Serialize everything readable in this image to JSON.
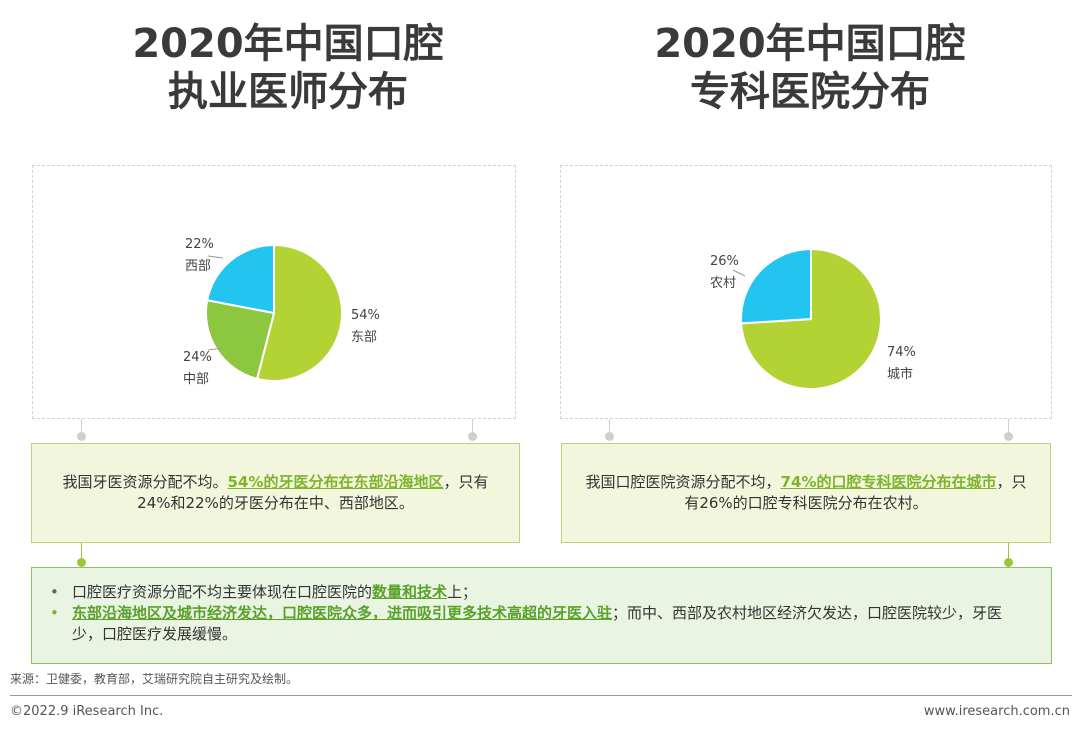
{
  "titles": {
    "left": {
      "line1": "2020年中国口腔",
      "line2": "执业医师分布"
    },
    "right": {
      "line1": "2020年中国口腔",
      "line2": "专科医院分布"
    }
  },
  "chart_data": [
    {
      "type": "pie",
      "title": "2020年中国口腔执业医师分布",
      "slices": [
        {
          "label": "东部",
          "value": 54,
          "value_text": "54%",
          "color": "#b3d335"
        },
        {
          "label": "中部",
          "value": 24,
          "value_text": "24%",
          "color": "#8dc63f"
        },
        {
          "label": "西部",
          "value": 22,
          "value_text": "22%",
          "color": "#22c4f0"
        }
      ]
    },
    {
      "type": "pie",
      "title": "2020年中国口腔专科医院分布",
      "slices": [
        {
          "label": "城市",
          "value": 74,
          "value_text": "74%",
          "color": "#b3d335"
        },
        {
          "label": "农村",
          "value": 26,
          "value_text": "26%",
          "color": "#22c4f0"
        }
      ]
    }
  ],
  "notes": {
    "left": {
      "pre": "我国牙医资源分配不均。",
      "highlight": "54%的牙医分布在东部沿海地区",
      "post": "，只有24%和22%的牙医分布在中、西部地区。"
    },
    "right": {
      "pre": "我国口腔医院资源分配不均，",
      "highlight": "74%的口腔专科医院分布在城市",
      "post": "，只有26%的口腔专科医院分布在农村。"
    }
  },
  "summary": {
    "bullet_symbol": "•",
    "item1": {
      "pre": "口腔医疗资源分配不均主要体现在口腔医院的",
      "highlight": "数量和技术",
      "post": "上；"
    },
    "item2": {
      "highlight": "东部沿海地区及城市经济发达，口腔医院众多，进而吸引更多技术高超的牙医入驻",
      "post": "；而中、西部及农村地区经济欠发达，口腔医院较少，牙医少，口腔医疗发展缓慢。"
    }
  },
  "footer": {
    "source": "来源：卫健委，教育部，艾瑞研究院自主研究及绘制。",
    "copyright": "©2022.9 iResearch Inc.",
    "website": "www.iresearch.com.cn"
  },
  "colors": {
    "accent_green": "#7fb32a",
    "pie_lime": "#b3d335",
    "pie_green": "#8dc63f",
    "pie_cyan": "#22c4f0"
  }
}
